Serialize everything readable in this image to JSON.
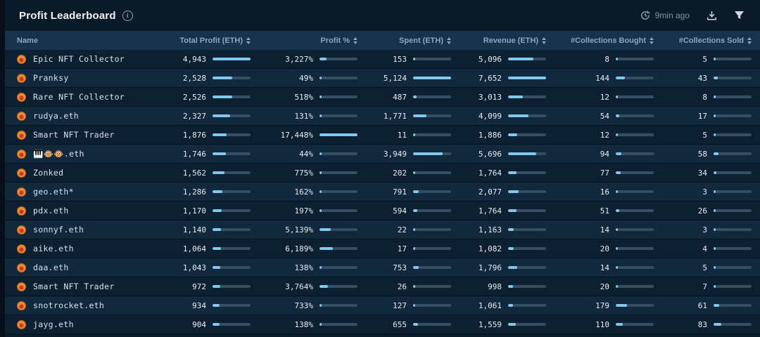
{
  "header": {
    "title": "Profit Leaderboard",
    "info_icon": "i",
    "updated": "9min ago"
  },
  "colors": {
    "accent_bar": "#82c9ef",
    "bar_track": "#374d61",
    "header_bg": "#16324c",
    "row_dark": "#0d2031",
    "row_light": "#12283d"
  },
  "table": {
    "columns": [
      {
        "key": "name",
        "label": "Name",
        "sortable": false
      },
      {
        "key": "total_profit",
        "label": "Total Profit (ETH)",
        "sortable": true,
        "scale_max": 4943
      },
      {
        "key": "profit_pct",
        "label": "Profit %",
        "sortable": true,
        "scale_max": 17448
      },
      {
        "key": "spent",
        "label": "Spent (ETH)",
        "sortable": true,
        "scale_max": 5124
      },
      {
        "key": "revenue",
        "label": "Revenue (ETH)",
        "sortable": true,
        "scale_max": 7652
      },
      {
        "key": "collections_bought",
        "label": "#Collections Bought",
        "sortable": true,
        "scale_max": 600
      },
      {
        "key": "collections_sold",
        "label": "#Collections Sold",
        "sortable": true,
        "scale_max": 420
      }
    ],
    "rows": [
      {
        "name": "Epic NFT Collector",
        "metrics": [
          {
            "text": "4,943",
            "value": 4943
          },
          {
            "text": "3,227%",
            "value": 3227
          },
          {
            "text": "153",
            "value": 153
          },
          {
            "text": "5,096",
            "value": 5096
          },
          {
            "text": "8",
            "value": 8
          },
          {
            "text": "5",
            "value": 5
          }
        ]
      },
      {
        "name": "Pranksy",
        "metrics": [
          {
            "text": "2,528",
            "value": 2528
          },
          {
            "text": "49%",
            "value": 49
          },
          {
            "text": "5,124",
            "value": 5124
          },
          {
            "text": "7,652",
            "value": 7652
          },
          {
            "text": "144",
            "value": 144
          },
          {
            "text": "43",
            "value": 43
          }
        ]
      },
      {
        "name": "Rare NFT Collector",
        "metrics": [
          {
            "text": "2,526",
            "value": 2526
          },
          {
            "text": "518%",
            "value": 518
          },
          {
            "text": "487",
            "value": 487
          },
          {
            "text": "3,013",
            "value": 3013
          },
          {
            "text": "12",
            "value": 12
          },
          {
            "text": "8",
            "value": 8
          }
        ]
      },
      {
        "name": "rudya.eth",
        "metrics": [
          {
            "text": "2,327",
            "value": 2327
          },
          {
            "text": "131%",
            "value": 131
          },
          {
            "text": "1,771",
            "value": 1771
          },
          {
            "text": "4,099",
            "value": 4099
          },
          {
            "text": "54",
            "value": 54
          },
          {
            "text": "17",
            "value": 17
          }
        ]
      },
      {
        "name": "Smart NFT Trader",
        "metrics": [
          {
            "text": "1,876",
            "value": 1876
          },
          {
            "text": "17,448%",
            "value": 17448
          },
          {
            "text": "11",
            "value": 11
          },
          {
            "text": "1,886",
            "value": 1886
          },
          {
            "text": "12",
            "value": 12
          },
          {
            "text": "5",
            "value": 5
          }
        ]
      },
      {
        "name": "🎹🐵🐵.eth",
        "metrics": [
          {
            "text": "1,746",
            "value": 1746
          },
          {
            "text": "44%",
            "value": 44
          },
          {
            "text": "3,949",
            "value": 3949
          },
          {
            "text": "5,696",
            "value": 5696
          },
          {
            "text": "94",
            "value": 94
          },
          {
            "text": "58",
            "value": 58
          }
        ]
      },
      {
        "name": "Zonked",
        "metrics": [
          {
            "text": "1,562",
            "value": 1562
          },
          {
            "text": "775%",
            "value": 775
          },
          {
            "text": "202",
            "value": 202
          },
          {
            "text": "1,764",
            "value": 1764
          },
          {
            "text": "77",
            "value": 77
          },
          {
            "text": "34",
            "value": 34
          }
        ]
      },
      {
        "name": "geo.eth*",
        "metrics": [
          {
            "text": "1,286",
            "value": 1286
          },
          {
            "text": "162%",
            "value": 162
          },
          {
            "text": "791",
            "value": 791
          },
          {
            "text": "2,077",
            "value": 2077
          },
          {
            "text": "16",
            "value": 16
          },
          {
            "text": "3",
            "value": 3
          }
        ]
      },
      {
        "name": "pdx.eth",
        "metrics": [
          {
            "text": "1,170",
            "value": 1170
          },
          {
            "text": "197%",
            "value": 197
          },
          {
            "text": "594",
            "value": 594
          },
          {
            "text": "1,764",
            "value": 1764
          },
          {
            "text": "51",
            "value": 51
          },
          {
            "text": "26",
            "value": 26
          }
        ]
      },
      {
        "name": "sonnyf.eth",
        "metrics": [
          {
            "text": "1,140",
            "value": 1140
          },
          {
            "text": "5,139%",
            "value": 5139
          },
          {
            "text": "22",
            "value": 22
          },
          {
            "text": "1,163",
            "value": 1163
          },
          {
            "text": "14",
            "value": 14
          },
          {
            "text": "3",
            "value": 3
          }
        ]
      },
      {
        "name": "aike.eth",
        "metrics": [
          {
            "text": "1,064",
            "value": 1064
          },
          {
            "text": "6,189%",
            "value": 6189
          },
          {
            "text": "17",
            "value": 17
          },
          {
            "text": "1,082",
            "value": 1082
          },
          {
            "text": "20",
            "value": 20
          },
          {
            "text": "4",
            "value": 4
          }
        ]
      },
      {
        "name": "daa.eth",
        "metrics": [
          {
            "text": "1,043",
            "value": 1043
          },
          {
            "text": "138%",
            "value": 138
          },
          {
            "text": "753",
            "value": 753
          },
          {
            "text": "1,796",
            "value": 1796
          },
          {
            "text": "14",
            "value": 14
          },
          {
            "text": "5",
            "value": 5
          }
        ]
      },
      {
        "name": "Smart NFT Trader",
        "metrics": [
          {
            "text": "972",
            "value": 972
          },
          {
            "text": "3,764%",
            "value": 3764
          },
          {
            "text": "26",
            "value": 26
          },
          {
            "text": "998",
            "value": 998
          },
          {
            "text": "20",
            "value": 20
          },
          {
            "text": "7",
            "value": 7
          }
        ]
      },
      {
        "name": "snotrocket.eth",
        "metrics": [
          {
            "text": "934",
            "value": 934
          },
          {
            "text": "733%",
            "value": 733
          },
          {
            "text": "127",
            "value": 127
          },
          {
            "text": "1,061",
            "value": 1061
          },
          {
            "text": "179",
            "value": 179
          },
          {
            "text": "61",
            "value": 61
          }
        ]
      },
      {
        "name": "jayg.eth",
        "metrics": [
          {
            "text": "904",
            "value": 904
          },
          {
            "text": "138%",
            "value": 138
          },
          {
            "text": "655",
            "value": 655
          },
          {
            "text": "1,559",
            "value": 1559
          },
          {
            "text": "110",
            "value": 110
          },
          {
            "text": "83",
            "value": 83
          }
        ]
      }
    ]
  }
}
